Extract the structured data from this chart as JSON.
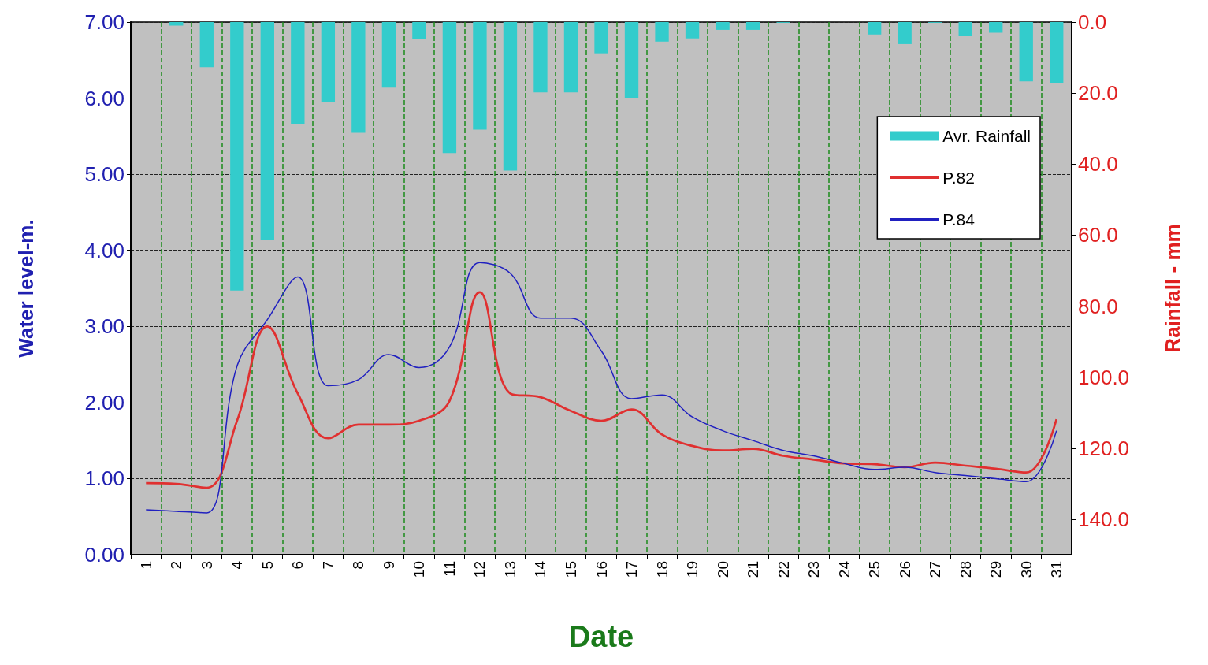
{
  "chart_data": {
    "type": "line",
    "xlabel": "Date",
    "ylabel": "Water level-m.",
    "y2label": "Rainfall - mm",
    "categories": [
      "1",
      "2",
      "3",
      "4",
      "5",
      "6",
      "7",
      "8",
      "9",
      "10",
      "11",
      "12",
      "13",
      "14",
      "15",
      "16",
      "17",
      "18",
      "19",
      "20",
      "21",
      "22",
      "23",
      "24",
      "25",
      "26",
      "27",
      "28",
      "29",
      "30",
      "31"
    ],
    "series": [
      {
        "name": "Avr. Rainfall",
        "type": "bar",
        "axis": "y2",
        "color": "#33cccc",
        "values": [
          0,
          1,
          12.7,
          75.6,
          61.3,
          28.6,
          22.4,
          31.2,
          18.5,
          4.8,
          36.9,
          30.3,
          41.8,
          19.8,
          19.8,
          8.8,
          21.5,
          5.5,
          4.6,
          2.2,
          2.2,
          0.2,
          0,
          0,
          3.5,
          6.2,
          0.2,
          4,
          3,
          16.7,
          17.1
        ]
      },
      {
        "name": "P.82",
        "color": "#e03030",
        "values": [
          0.94,
          0.93,
          0.88,
          1.76,
          3.0,
          2.12,
          1.53,
          1.71,
          1.71,
          1.76,
          2.02,
          3.45,
          2.12,
          2.07,
          1.89,
          1.76,
          1.91,
          1.58,
          1.43,
          1.37,
          1.39,
          1.3,
          1.25,
          1.2,
          1.19,
          1.15,
          1.21,
          1.17,
          1.13,
          1.08,
          1.78
        ]
      },
      {
        "name": "P.84",
        "color": "#2020c0",
        "values": [
          0.59,
          0.57,
          0.55,
          2.48,
          3.09,
          3.65,
          2.22,
          2.3,
          2.63,
          2.46,
          2.73,
          3.84,
          3.7,
          3.11,
          3.11,
          2.68,
          2.05,
          2.1,
          1.81,
          1.63,
          1.5,
          1.37,
          1.3,
          1.2,
          1.12,
          1.15,
          1.08,
          1.04,
          1.0,
          0.96,
          1.63
        ]
      }
    ],
    "ylim": [
      0,
      7
    ],
    "yticks": [
      {
        "value": 0,
        "label": "0.00"
      },
      {
        "value": 1,
        "label": "1.00"
      },
      {
        "value": 2,
        "label": "2.00"
      },
      {
        "value": 3,
        "label": "3.00"
      },
      {
        "value": 4,
        "label": "4.00"
      },
      {
        "value": 5,
        "label": "5.00"
      },
      {
        "value": 6,
        "label": "6.00"
      },
      {
        "value": 7,
        "label": "7.00"
      }
    ],
    "y2lim": [
      150,
      0
    ],
    "y2ticks": [
      {
        "value": 0,
        "label": "0.0"
      },
      {
        "value": 20,
        "label": "20.0"
      },
      {
        "value": 40,
        "label": "40.0"
      },
      {
        "value": 60,
        "label": "60.0"
      },
      {
        "value": 80,
        "label": "80.0"
      },
      {
        "value": 100,
        "label": "100.0"
      },
      {
        "value": 120,
        "label": "120.0"
      },
      {
        "value": 140,
        "label": "140.0"
      }
    ],
    "grid": true,
    "legend": "top right",
    "marker": "none",
    "line_style": "solid"
  }
}
